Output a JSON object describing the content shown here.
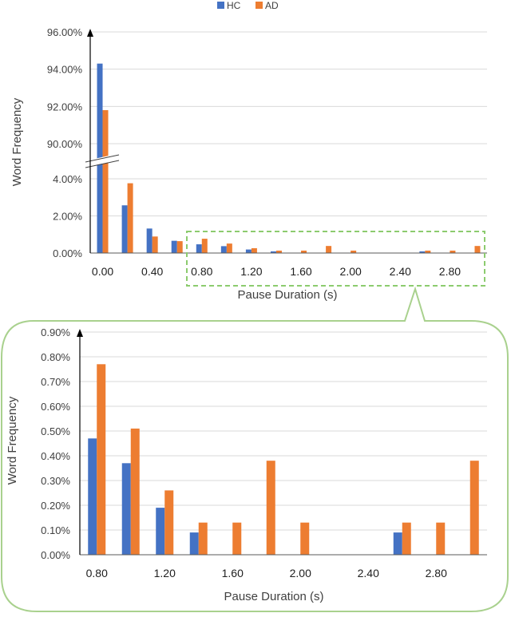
{
  "colors": {
    "hc": "#4472C4",
    "ad": "#ED7D31",
    "grid": "#D9D9D9",
    "text": "#404040",
    "highlight": "#8CCB6E"
  },
  "legend": {
    "hc_label": "HC",
    "ad_label": "AD",
    "placement": "top-center"
  },
  "chart_data": [
    {
      "type": "bar",
      "title": "",
      "xlabel": "Pause Duration (s)",
      "ylabel": "Word Frequency",
      "axis_break": "between 4.00% and 90.00%",
      "y_ticks_upper": [
        "90.00%",
        "92.00%",
        "94.00%",
        "96.00%"
      ],
      "y_ticks_lower": [
        "0.00%",
        "2.00%",
        "4.00%"
      ],
      "x_tick_labels": [
        "0.00",
        "0.40",
        "0.80",
        "1.20",
        "1.60",
        "2.00",
        "2.40",
        "2.80"
      ],
      "ylim_upper": [
        90,
        96
      ],
      "ylim_lower": [
        0,
        4
      ],
      "grid": true,
      "categories": [
        0.0,
        0.2,
        0.4,
        0.6,
        0.8,
        1.0,
        1.2,
        1.4,
        1.6,
        1.8,
        2.0,
        2.2,
        2.4,
        2.6,
        2.8,
        3.0
      ],
      "series": [
        {
          "name": "HC",
          "values": [
            94.3,
            2.57,
            1.32,
            0.66,
            0.47,
            0.37,
            0.19,
            0.09,
            0,
            0,
            0,
            0,
            0,
            0.09,
            0,
            0
          ]
        },
        {
          "name": "AD",
          "values": [
            91.8,
            3.76,
            0.89,
            0.64,
            0.77,
            0.51,
            0.26,
            0.13,
            0.13,
            0.38,
            0.13,
            0,
            0,
            0.13,
            0.13,
            0.38
          ]
        }
      ]
    },
    {
      "type": "bar",
      "title": "",
      "xlabel": "Pause Duration (s)",
      "ylabel": "Word Frequency",
      "y_ticks": [
        "0.00%",
        "0.10%",
        "0.20%",
        "0.30%",
        "0.40%",
        "0.50%",
        "0.60%",
        "0.70%",
        "0.80%",
        "0.90%"
      ],
      "x_tick_labels": [
        "0.80",
        "1.20",
        "1.60",
        "2.00",
        "2.40",
        "2.80"
      ],
      "ylim": [
        0,
        0.9
      ],
      "grid": true,
      "categories": [
        0.8,
        1.0,
        1.2,
        1.4,
        1.6,
        1.8,
        2.0,
        2.2,
        2.4,
        2.6,
        2.8,
        3.0
      ],
      "series": [
        {
          "name": "HC",
          "values": [
            0.47,
            0.37,
            0.19,
            0.09,
            0,
            0,
            0,
            0,
            0,
            0.09,
            0,
            0
          ]
        },
        {
          "name": "AD",
          "values": [
            0.77,
            0.51,
            0.26,
            0.13,
            0.13,
            0.38,
            0.13,
            0,
            0,
            0.13,
            0.13,
            0.38
          ]
        }
      ]
    }
  ]
}
